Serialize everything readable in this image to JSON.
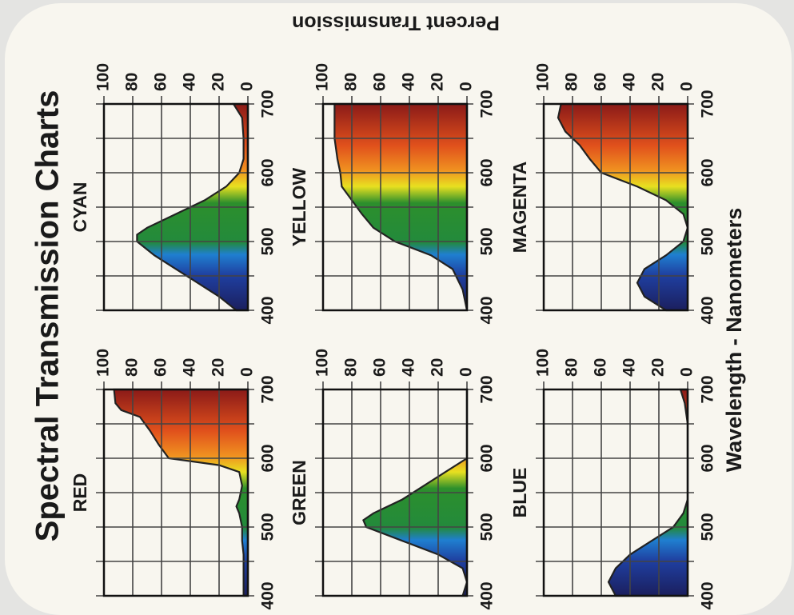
{
  "title": "Spectral Transmission Charts",
  "x_label": "Wavelength - Nanometers",
  "y_label": "Percent Transmission",
  "chart_data": [
    {
      "type": "area",
      "title": "RED",
      "x": [
        400,
        420,
        440,
        460,
        480,
        500,
        520,
        530,
        540,
        560,
        580,
        590,
        600,
        620,
        640,
        660,
        670,
        680,
        700
      ],
      "values": [
        3,
        3,
        3,
        3,
        4,
        4,
        6,
        8,
        6,
        4,
        6,
        20,
        55,
        62,
        68,
        75,
        88,
        92,
        93
      ],
      "xlim": [
        400,
        700
      ],
      "ylim": [
        0,
        100
      ],
      "xticks": [
        400,
        500,
        600,
        700
      ],
      "minor_xticks": [
        450,
        550,
        650
      ],
      "yticks": [
        0,
        20,
        40,
        60,
        80,
        100
      ]
    },
    {
      "type": "area",
      "title": "CYAN",
      "x": [
        400,
        420,
        440,
        460,
        480,
        500,
        510,
        520,
        540,
        560,
        580,
        600,
        620,
        650,
        680,
        700
      ],
      "values": [
        8,
        20,
        35,
        50,
        65,
        77,
        77,
        70,
        50,
        30,
        15,
        6,
        3,
        3,
        4,
        10
      ],
      "xlim": [
        400,
        700
      ],
      "ylim": [
        0,
        100
      ],
      "xticks": [
        400,
        500,
        600,
        700
      ],
      "minor_xticks": [
        450,
        550,
        650
      ],
      "yticks": [
        0,
        20,
        40,
        60,
        80,
        100
      ]
    },
    {
      "type": "area",
      "title": "GREEN",
      "x": [
        400,
        420,
        440,
        460,
        480,
        500,
        510,
        520,
        540,
        560,
        580,
        600,
        650,
        700
      ],
      "values": [
        3,
        0,
        3,
        20,
        45,
        70,
        72,
        65,
        45,
        30,
        15,
        0,
        0,
        0
      ],
      "xlim": [
        400,
        700
      ],
      "ylim": [
        0,
        100
      ],
      "xticks": [
        400,
        500,
        600,
        700
      ],
      "minor_xticks": [
        450,
        550,
        650
      ],
      "yticks": [
        0,
        20,
        40,
        60,
        80,
        100
      ]
    },
    {
      "type": "area",
      "title": "YELLOW",
      "x": [
        400,
        430,
        460,
        480,
        500,
        520,
        540,
        560,
        580,
        600,
        620,
        650,
        700
      ],
      "values": [
        0,
        3,
        10,
        25,
        50,
        65,
        73,
        80,
        87,
        88,
        90,
        92,
        92
      ],
      "xlim": [
        400,
        700
      ],
      "ylim": [
        0,
        100
      ],
      "xticks": [
        400,
        500,
        600,
        700
      ],
      "minor_xticks": [
        450,
        550,
        650
      ],
      "yticks": [
        0,
        20,
        40,
        60,
        80,
        100
      ]
    },
    {
      "type": "area",
      "title": "BLUE",
      "x": [
        400,
        420,
        440,
        460,
        480,
        500,
        520,
        540,
        600,
        650,
        680,
        700
      ],
      "values": [
        50,
        55,
        50,
        40,
        25,
        10,
        3,
        0,
        0,
        0,
        2,
        5
      ],
      "xlim": [
        400,
        700
      ],
      "ylim": [
        0,
        100
      ],
      "xticks": [
        400,
        500,
        600,
        700
      ],
      "minor_xticks": [
        450,
        550,
        650
      ],
      "yticks": [
        0,
        20,
        40,
        60,
        80,
        100
      ]
    },
    {
      "type": "area",
      "title": "MAGENTA",
      "x": [
        400,
        420,
        440,
        460,
        480,
        500,
        520,
        540,
        560,
        580,
        600,
        620,
        640,
        660,
        680,
        700
      ],
      "values": [
        15,
        30,
        35,
        30,
        15,
        3,
        0,
        3,
        15,
        35,
        60,
        68,
        75,
        85,
        90,
        88
      ],
      "xlim": [
        400,
        700
      ],
      "ylim": [
        0,
        100
      ],
      "xticks": [
        400,
        500,
        600,
        700
      ],
      "minor_xticks": [
        450,
        550,
        650
      ],
      "yticks": [
        0,
        20,
        40,
        60,
        80,
        100
      ]
    }
  ]
}
